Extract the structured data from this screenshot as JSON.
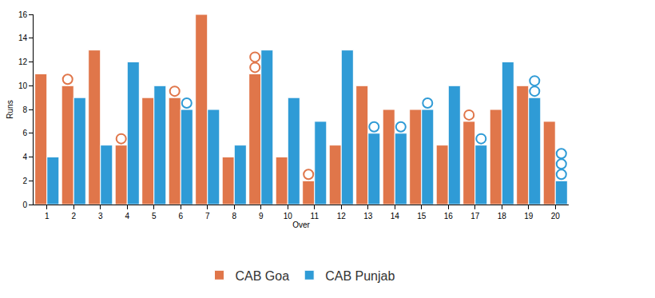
{
  "chart_data": {
    "type": "bar",
    "x_label": "Over",
    "y_label": "Runs",
    "categories": [
      "1",
      "2",
      "3",
      "4",
      "5",
      "6",
      "7",
      "8",
      "9",
      "10",
      "11",
      "12",
      "13",
      "14",
      "15",
      "16",
      "17",
      "18",
      "19",
      "20"
    ],
    "series": [
      {
        "name": "CAB Goa",
        "color": "#e0764a",
        "values": [
          11,
          10,
          13,
          5,
          9,
          9,
          16,
          4,
          11,
          4,
          2,
          5,
          10,
          8,
          8,
          5,
          7,
          8,
          10,
          7
        ],
        "wickets": [
          0,
          1,
          0,
          1,
          0,
          1,
          0,
          0,
          2,
          0,
          1,
          0,
          0,
          0,
          0,
          0,
          1,
          0,
          0,
          0
        ]
      },
      {
        "name": "CAB Punjab",
        "color": "#2f9bd6",
        "values": [
          4,
          9,
          5,
          12,
          10,
          8,
          8,
          5,
          13,
          9,
          7,
          13,
          6,
          6,
          8,
          10,
          5,
          12,
          9,
          2
        ],
        "wickets": [
          0,
          0,
          0,
          0,
          0,
          1,
          0,
          0,
          0,
          0,
          0,
          0,
          1,
          1,
          1,
          0,
          1,
          0,
          2,
          3
        ]
      }
    ],
    "ylim": [
      0,
      16
    ],
    "yticks": [
      0,
      2,
      4,
      6,
      8,
      10,
      12,
      14,
      16
    ],
    "grid": false,
    "legend": "bottom"
  }
}
